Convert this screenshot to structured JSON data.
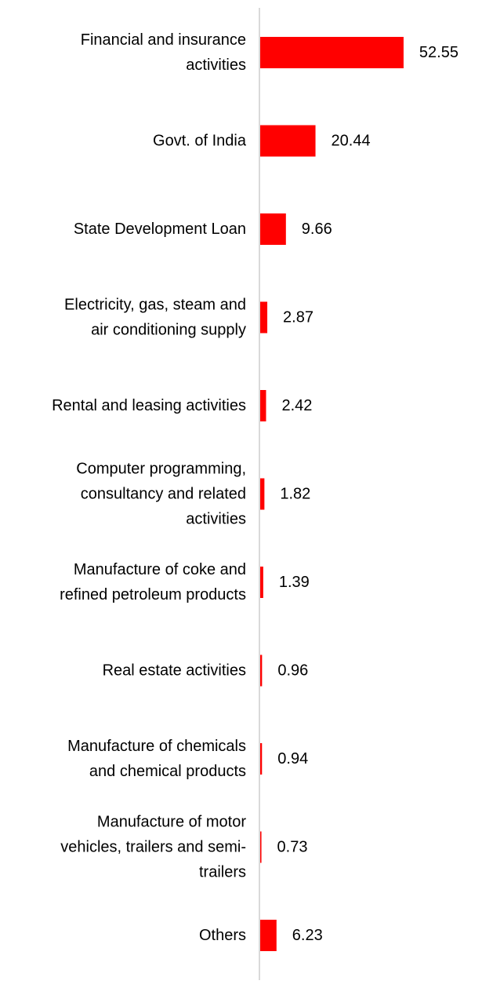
{
  "chart_data": {
    "type": "bar",
    "orientation": "horizontal",
    "categories": [
      [
        "Financial and insurance",
        "activities"
      ],
      [
        "Govt. of India"
      ],
      [
        "State Development Loan"
      ],
      [
        "Electricity, gas, steam and",
        "air conditioning supply"
      ],
      [
        "Rental and leasing activities"
      ],
      [
        "Computer programming,",
        "consultancy and related",
        "activities"
      ],
      [
        "Manufacture of coke and",
        "refined petroleum products"
      ],
      [
        "Real estate activities"
      ],
      [
        "Manufacture of chemicals",
        "and chemical products"
      ],
      [
        "Manufacture of motor",
        "vehicles, trailers and semi-",
        "trailers"
      ],
      [
        "Others"
      ]
    ],
    "values": [
      52.55,
      20.44,
      9.66,
      2.87,
      2.42,
      1.82,
      1.39,
      0.96,
      0.94,
      0.73,
      6.23
    ],
    "value_labels": [
      "52.55",
      "20.44",
      "9.66",
      "2.87",
      "2.42",
      "1.82",
      "1.39",
      "0.96",
      "0.94",
      "0.73",
      "6.23"
    ],
    "xlim": [
      0,
      60
    ],
    "grid": false,
    "legend": "none",
    "bar_color": "#ff0000",
    "axis_color": "#d9d9d9"
  }
}
